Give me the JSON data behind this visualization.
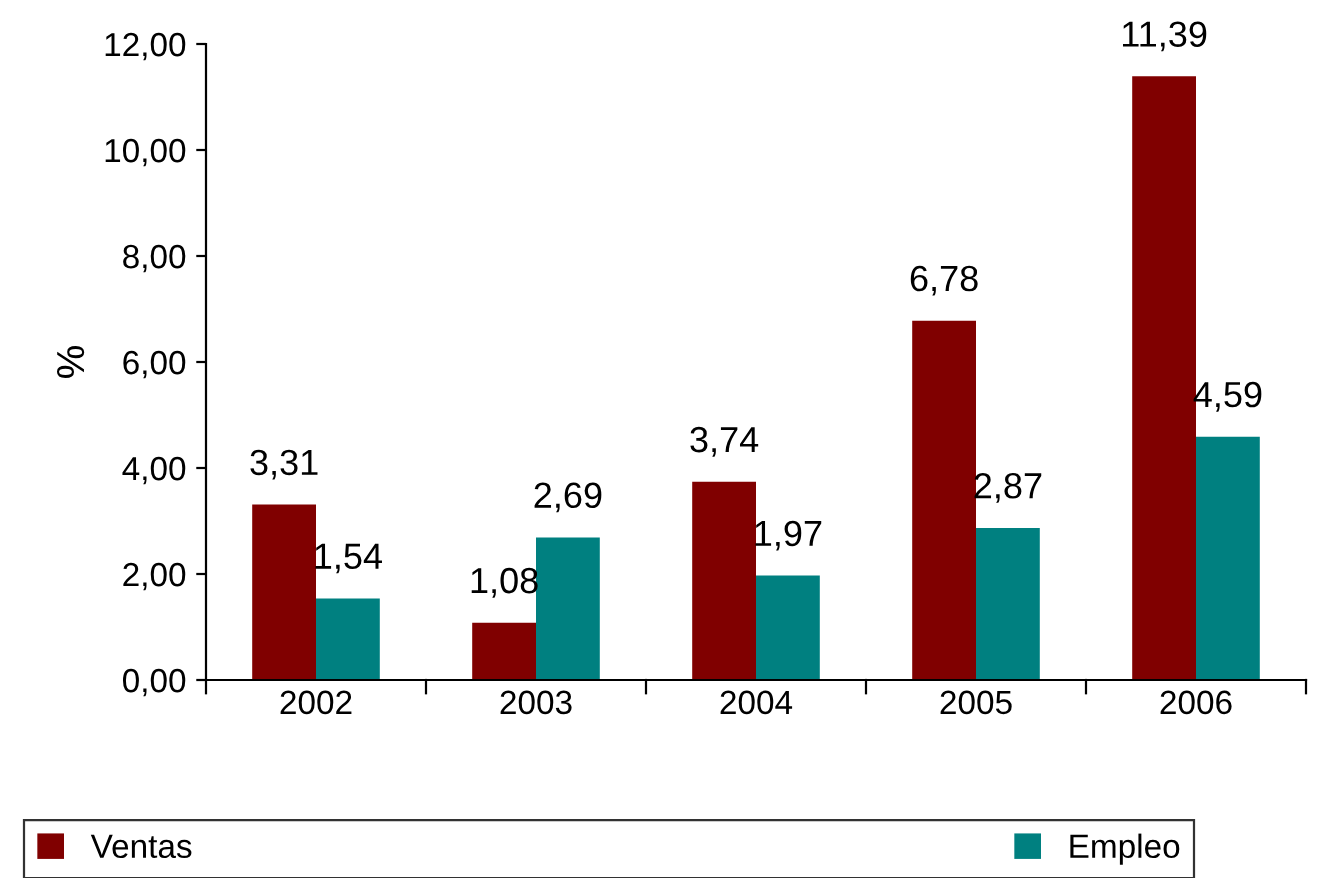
{
  "chart_data": {
    "type": "bar",
    "ylabel": "%",
    "categories": [
      "2002",
      "2003",
      "2004",
      "2005",
      "2006"
    ],
    "series": [
      {
        "name": "Ventas",
        "color": "#800000",
        "values": [
          3.31,
          1.08,
          3.74,
          6.78,
          11.39
        ],
        "value_labels": [
          "3,31",
          "1,08",
          "3,74",
          "6,78",
          "11,39"
        ]
      },
      {
        "name": "Empleo",
        "color": "#008080",
        "values": [
          1.54,
          2.69,
          1.97,
          2.87,
          4.59
        ],
        "value_labels": [
          "1,54",
          "2,69",
          "1,97",
          "2,87",
          "4,59"
        ]
      }
    ],
    "ylim": [
      0,
      12
    ],
    "yticks": [
      {
        "value": 0,
        "label": "0,00"
      },
      {
        "value": 2,
        "label": "2,00"
      },
      {
        "value": 4,
        "label": "4,00"
      },
      {
        "value": 6,
        "label": "6,00"
      },
      {
        "value": 8,
        "label": "8,00"
      },
      {
        "value": 10,
        "label": "10,00"
      },
      {
        "value": 12,
        "label": "12,00"
      }
    ],
    "grid": false,
    "legend": "bottom"
  }
}
